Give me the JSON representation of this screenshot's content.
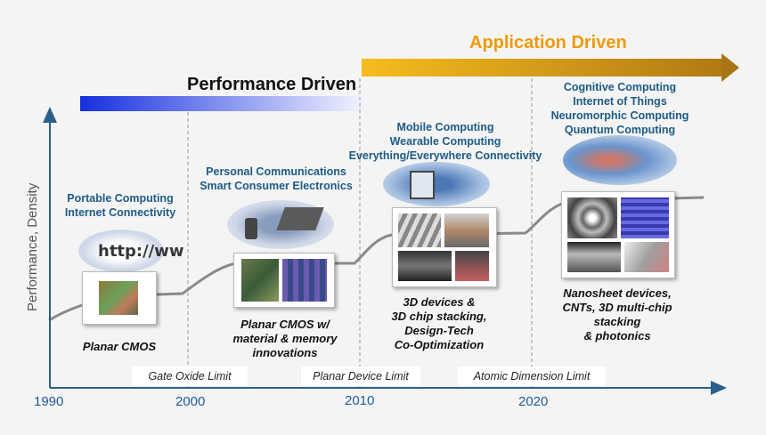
{
  "banners": {
    "application": "Application Driven",
    "performance": "Performance Driven"
  },
  "axis": {
    "y_label": "Performance, Density",
    "years": [
      "1990",
      "2000",
      "2010",
      "2020"
    ]
  },
  "eras": [
    {
      "applications": "Portable Computing\nInternet Connectivity",
      "technology": "Planar CMOS"
    },
    {
      "applications": "Personal Communications\nSmart Consumer Electronics",
      "technology": "Planar CMOS w/\nmaterial & memory\ninnovations"
    },
    {
      "applications": "Mobile Computing\nWearable Computing\nEverything/Everywhere Connectivity",
      "technology": "3D devices &\n3D chip stacking,\nDesign-Tech\nCo-Optimization"
    },
    {
      "applications": "Cognitive Computing\nInternet of Things\nNeuromorphic Computing\nQuantum Computing",
      "technology": "Nanosheet devices,\nCNTs, 3D multi-chip\nstacking\n& photonics"
    }
  ],
  "limits": [
    "Gate Oxide Limit",
    "Planar Device Limit",
    "Atomic Dimension Limit"
  ],
  "icons": {
    "browser_image_text": "http://ww"
  },
  "colors": {
    "application_arrow": "#e8a020",
    "performance_arrow": "#1a33d9",
    "era_text": "#1d5b86",
    "year_text": "#1d5b9a",
    "axis": "#2a5f8a"
  }
}
